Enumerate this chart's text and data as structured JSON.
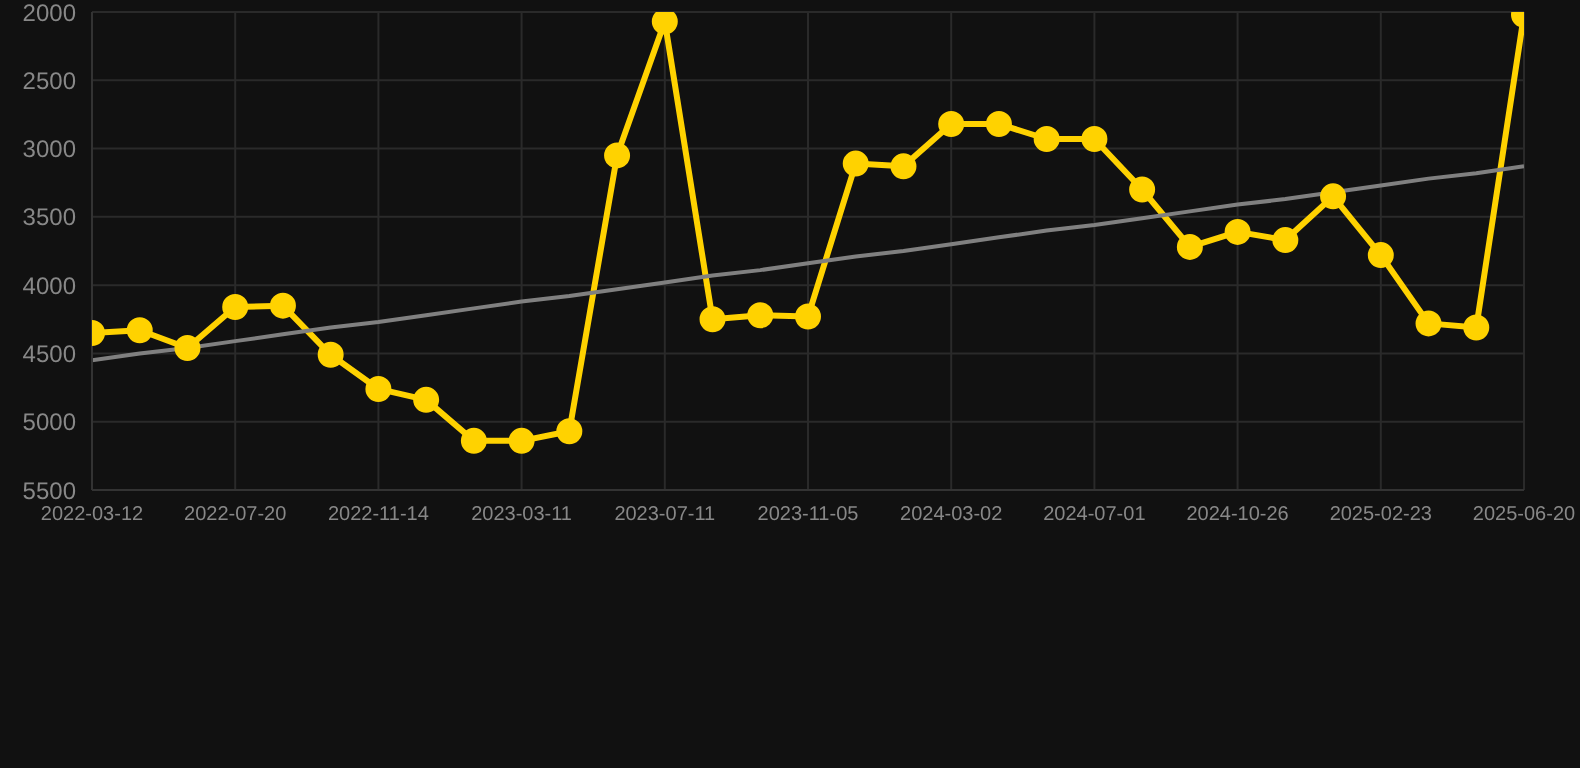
{
  "chart_data": {
    "type": "line",
    "categories": [
      "2022-03-12",
      null,
      null,
      "2022-07-20",
      null,
      null,
      "2022-11-14",
      null,
      null,
      "2023-03-11",
      null,
      null,
      "2023-07-11",
      null,
      null,
      "2023-11-05",
      null,
      null,
      "2024-03-02",
      null,
      null,
      "2024-07-01",
      null,
      null,
      "2024-10-26",
      null,
      null,
      "2025-02-23",
      null,
      null,
      "2025-06-20"
    ],
    "series": [
      {
        "color": "#ffd200",
        "values": [
          4350,
          4330,
          4460,
          4160,
          4150,
          4510,
          4760,
          4840,
          5140,
          5140,
          5070,
          3050,
          2070,
          4250,
          4220,
          4230,
          3110,
          3130,
          2820,
          2820,
          2930,
          2930,
          3300,
          3720,
          3610,
          3670,
          3350,
          3780,
          4280,
          4310,
          2020
        ]
      },
      {
        "type": "line",
        "color": "#808080",
        "marker": "none",
        "values": [
          4550,
          4500,
          4460,
          4410,
          4360,
          4310,
          4270,
          4220,
          4170,
          4120,
          4080,
          4030,
          3980,
          3930,
          3890,
          3840,
          3790,
          3750,
          3700,
          3650,
          3600,
          3560,
          3510,
          3460,
          3410,
          3370,
          3320,
          3270,
          3220,
          3180,
          3130
        ]
      }
    ],
    "ylim": [
      5500,
      2000
    ],
    "yticks": [
      2000,
      2500,
      3000,
      3500,
      4000,
      4500,
      5000,
      5500
    ],
    "grid": true,
    "marker": "circle",
    "line_style": "solid"
  }
}
